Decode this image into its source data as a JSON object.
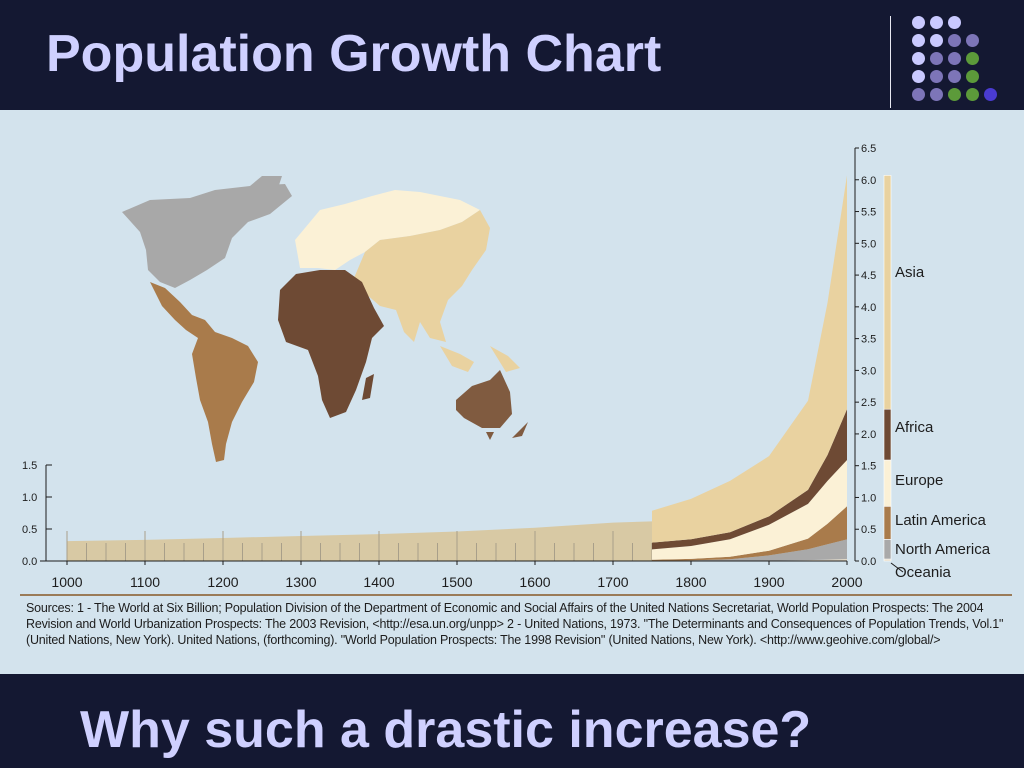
{
  "slide": {
    "title": "Population Growth Chart",
    "question": "Why such a drastic increase?",
    "background_color": "#141832",
    "title_color": "#cfd0ff",
    "dots": [
      [
        "#c9c9ff",
        "#c9c9ff",
        "#c9c9ff",
        null
      ],
      [
        "#c9c9ff",
        "#c9c9ff",
        "#7d75b8",
        "#7d75b8"
      ],
      [
        "#c9c9ff",
        "#7d75b8",
        "#7d75b8",
        "#5c9a3a"
      ],
      [
        "#c9c9ff",
        "#7d75b8",
        "#7d75b8",
        "#5c9a3a"
      ],
      [
        "#7d75b8",
        "#7d75b8",
        "#5c9a3a",
        "#5c9a3a",
        "#4a3bd1"
      ]
    ]
  },
  "chart_data": {
    "type": "area",
    "title": "",
    "ylabel": "",
    "xlabel": "",
    "x_ticks": [
      "1000",
      "1100",
      "1200",
      "1300",
      "1400",
      "1500",
      "1600",
      "1700",
      "1800",
      "1900",
      "2000"
    ],
    "xlim": [
      1000,
      2000
    ],
    "left_axis": {
      "ticks": [
        "1.5",
        "1.0",
        "0.5",
        "0.0"
      ],
      "ylim": [
        0,
        1.5
      ]
    },
    "right_axis": {
      "ticks": [
        "6.5",
        "6.0",
        "5.5",
        "5.0",
        "4.5",
        "4.0",
        "3.5",
        "3.0",
        "2.5",
        "2.0",
        "1.5",
        "1.0",
        "0.5",
        "0.0"
      ],
      "ylim": [
        0,
        6.5
      ]
    },
    "pre_breakdown": {
      "name": "",
      "color": "#d8c9a4",
      "x": [
        1000,
        1100,
        1200,
        1300,
        1400,
        1500,
        1600,
        1700,
        1750
      ],
      "values": [
        0.31,
        0.33,
        0.36,
        0.39,
        0.42,
        0.46,
        0.52,
        0.6,
        0.62
      ]
    },
    "x": [
      1750,
      1800,
      1850,
      1900,
      1950,
      1975,
      2000
    ],
    "series": [
      {
        "name": "Oceania",
        "color": "#e6dbc6",
        "values": [
          0.002,
          0.002,
          0.002,
          0.006,
          0.013,
          0.021,
          0.031
        ]
      },
      {
        "name": "North America",
        "color": "#a9a9a9",
        "values": [
          0.002,
          0.007,
          0.026,
          0.082,
          0.172,
          0.243,
          0.31
        ]
      },
      {
        "name": "Latin America",
        "color": "#a97b4b",
        "values": [
          0.016,
          0.024,
          0.038,
          0.074,
          0.167,
          0.322,
          0.52
        ]
      },
      {
        "name": "Europe",
        "color": "#fbf1d6",
        "values": [
          0.163,
          0.203,
          0.276,
          0.408,
          0.547,
          0.676,
          0.728
        ]
      },
      {
        "name": "Africa",
        "color": "#6e4a34",
        "values": [
          0.106,
          0.107,
          0.111,
          0.133,
          0.221,
          0.406,
          0.8
        ]
      },
      {
        "name": "Asia",
        "color": "#e9d2a0",
        "values": [
          0.502,
          0.635,
          0.809,
          0.947,
          1.402,
          2.395,
          3.68
        ]
      }
    ],
    "legend": [
      "Asia",
      "Africa",
      "Europe",
      "Latin America",
      "North America",
      "Oceania"
    ],
    "legend_position": "right",
    "grid": false
  },
  "sources": {
    "text": "Sources:  1 - The World at Six Billion; Population Division of the Department of Economic and Social Affairs of the United Nations Secretariat, World Population Prospects: The 2004 Revision and World Urbanization Prospects: The 2003 Revision, <http://esa.un.org/unpp>  2 - United Nations, 1973. \"The Determinants and Consequences of Population Trends, Vol.1\" (United Nations, New York). United Nations, (forthcoming). \"World Population Prospects: The 1998 Revision\" (United Nations, New York).   <http://www.geohive.com/global/>"
  },
  "map": {
    "regions": [
      {
        "name": "north-america",
        "color": "#a8a8a8"
      },
      {
        "name": "latin-america",
        "color": "#a97b4b"
      },
      {
        "name": "europe",
        "color": "#fbf1d6"
      },
      {
        "name": "asia",
        "color": "#e9d2a0"
      },
      {
        "name": "africa",
        "color": "#6e4a34"
      },
      {
        "name": "oceania",
        "color": "#805b40"
      }
    ]
  }
}
